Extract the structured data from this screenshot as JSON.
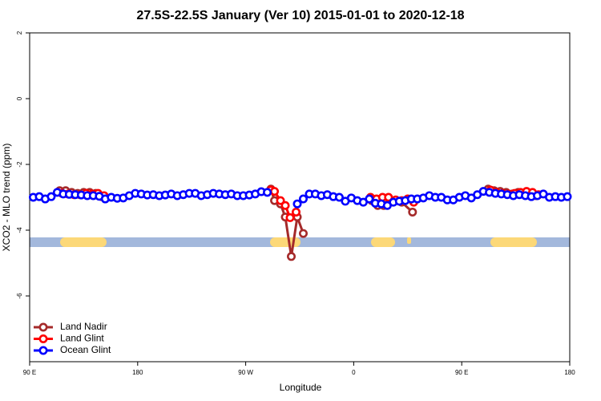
{
  "chart_data": {
    "type": "line",
    "title": "27.5S-22.5S January (Ver 10)   2015-01-01 to 2020-12-18",
    "x_label": "Longitude",
    "y_label": "XCO2 - MLO trend (ppm)",
    "xlim": [
      90,
      540
    ],
    "ylim": [
      -8,
      2
    ],
    "xticks": [
      {
        "value": 90,
        "label": "90 E"
      },
      180,
      {
        "value": 270,
        "label": "90 W"
      },
      {
        "value": 360,
        "label": "0"
      },
      {
        "value": 450,
        "label": "90 E"
      },
      {
        "value": 540,
        "label": "180"
      }
    ],
    "yticks": [
      -6,
      -4,
      -2,
      0,
      2
    ],
    "legend": "bottom-left",
    "series": [
      {
        "name": "Land Nadir",
        "color": "#a52a2a",
        "x": [
          115,
          120,
          125,
          130,
          135,
          140,
          145,
          150,
          200,
          291,
          294,
          299,
          303,
          308,
          313,
          318,
          340,
          375,
          380,
          385,
          390,
          400,
          409,
          440,
          472,
          477,
          482,
          487,
          492,
          497,
          502,
          507,
          512
        ],
        "values": [
          -2.8,
          -2.8,
          -2.85,
          -2.88,
          -2.85,
          -2.85,
          -2.88,
          -2.98,
          null,
          -2.75,
          -3.1,
          -3.2,
          -3.6,
          -4.8,
          -3.6,
          -4.1,
          null,
          -3.1,
          -3.25,
          -3.25,
          -3.1,
          -3.15,
          -3.45,
          null,
          -2.75,
          -2.8,
          -2.82,
          -2.85,
          -2.9,
          -2.85,
          -2.88,
          -2.88,
          -2.95
        ]
      },
      {
        "name": "Land Glint",
        "color": "#ff0000",
        "x": [
          117,
          122,
          127,
          132,
          137,
          142,
          147,
          152,
          200,
          291,
          294,
          299,
          303,
          307,
          312,
          340,
          374,
          379,
          384,
          389,
          395,
          400,
          405,
          410,
          440,
          474,
          479,
          484,
          489,
          494,
          499,
          504,
          509,
          514
        ],
        "values": [
          -2.88,
          -2.9,
          -2.92,
          -2.92,
          -2.88,
          -2.9,
          -2.88,
          -2.95,
          null,
          -2.78,
          -2.82,
          -3.1,
          -3.25,
          -3.62,
          -3.45,
          null,
          -3.0,
          -3.05,
          -3.0,
          -3.0,
          -3.08,
          -3.1,
          -3.05,
          -3.15,
          null,
          -2.78,
          -2.85,
          -2.88,
          -2.9,
          -2.88,
          -2.85,
          -2.82,
          -2.85,
          -2.92
        ]
      },
      {
        "name": "Ocean Glint",
        "color": "#0000ff",
        "x": [
          93,
          98,
          103,
          108,
          113,
          118,
          123,
          128,
          133,
          138,
          143,
          148,
          153,
          158,
          163,
          168,
          173,
          178,
          183,
          188,
          193,
          198,
          203,
          208,
          213,
          218,
          223,
          228,
          233,
          238,
          243,
          248,
          253,
          258,
          263,
          268,
          273,
          278,
          283,
          288,
          300,
          313,
          318,
          323,
          328,
          333,
          338,
          343,
          348,
          353,
          358,
          363,
          368,
          373,
          378,
          383,
          388,
          393,
          398,
          403,
          408,
          413,
          418,
          423,
          428,
          433,
          438,
          443,
          448,
          453,
          458,
          463,
          468,
          473,
          478,
          483,
          488,
          493,
          498,
          503,
          508,
          513,
          518,
          523,
          528,
          533,
          538
        ],
        "values": [
          -3.0,
          -2.98,
          -3.05,
          -2.98,
          -2.85,
          -2.9,
          -2.91,
          -2.92,
          -2.93,
          -2.95,
          -2.95,
          -2.97,
          -3.05,
          -3.0,
          -3.03,
          -3.02,
          -2.95,
          -2.88,
          -2.9,
          -2.93,
          -2.92,
          -2.95,
          -2.93,
          -2.9,
          -2.95,
          -2.92,
          -2.88,
          -2.88,
          -2.95,
          -2.92,
          -2.88,
          -2.9,
          -2.92,
          -2.9,
          -2.95,
          -2.95,
          -2.93,
          -2.9,
          -2.83,
          -2.85,
          null,
          -3.2,
          -3.05,
          -2.9,
          -2.9,
          -2.95,
          -2.92,
          -2.98,
          -3.0,
          -3.12,
          -3.02,
          -3.1,
          -3.15,
          -3.05,
          -3.18,
          -3.2,
          -3.25,
          -3.15,
          -3.12,
          -3.1,
          -3.05,
          -3.05,
          -3.02,
          -2.95,
          -3.0,
          -3.0,
          -3.08,
          -3.08,
          -3.0,
          -2.95,
          -3.02,
          -2.92,
          -2.82,
          -2.85,
          -2.88,
          -2.9,
          -2.92,
          -2.95,
          -2.92,
          -2.95,
          -2.98,
          -2.95,
          -2.9,
          -3.0,
          -2.98,
          -3.0,
          -2.98
        ]
      }
    ]
  }
}
